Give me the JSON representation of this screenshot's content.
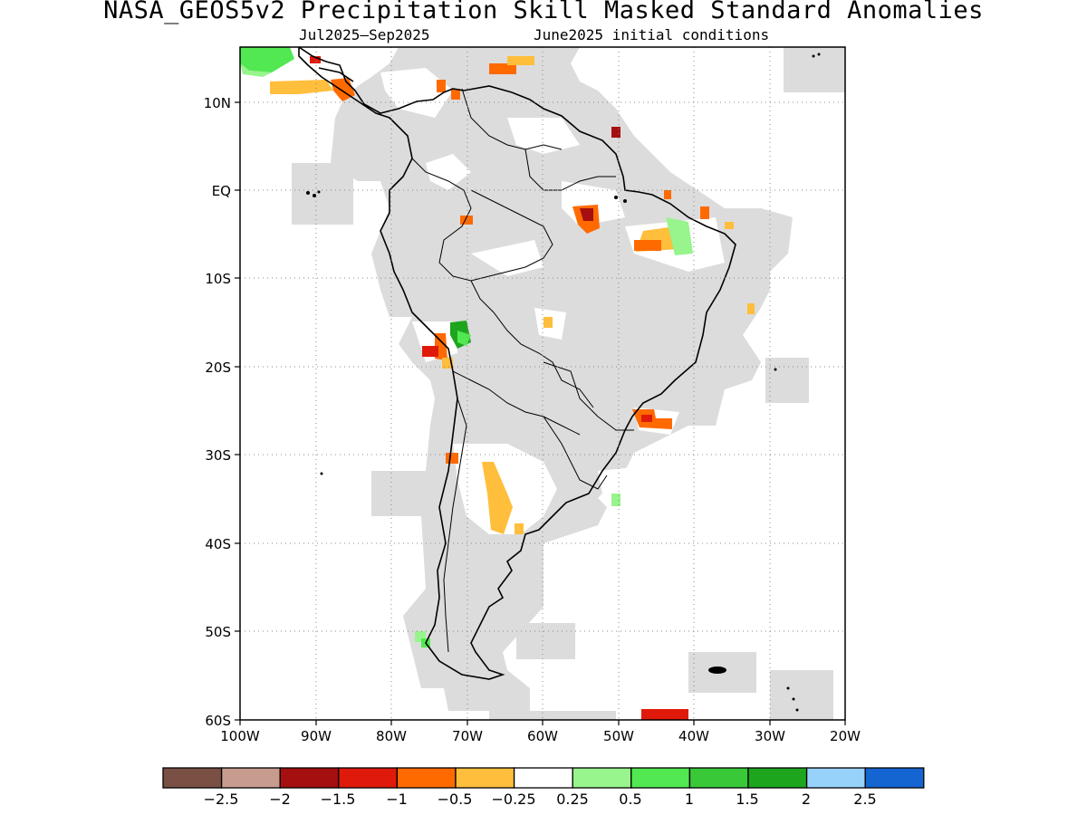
{
  "title": "NASA_GEOS5v2 Precipitation Skill Masked Standard Anomalies",
  "subtitle_left": "Jul2025–Sep2025",
  "subtitle_right": "June2025 initial conditions",
  "map": {
    "region": "South America",
    "lon_range": [
      -100,
      -20
    ],
    "lat_range": [
      -60,
      15
    ],
    "grid": "dotted",
    "masked_color": "#dcdcdc",
    "x_ticks": [
      "100W",
      "90W",
      "80W",
      "70W",
      "60W",
      "50W",
      "40W",
      "30W",
      "20W"
    ],
    "y_ticks": [
      "10N",
      "EQ",
      "10S",
      "20S",
      "30S",
      "40S",
      "50S",
      "60S"
    ]
  },
  "colorbar": {
    "colors": [
      "#7a5045",
      "#c89b8f",
      "#a50f0f",
      "#e01a0a",
      "#ff6a00",
      "#ffbe3c",
      "#ffffff",
      "#98f48c",
      "#52e852",
      "#38c838",
      "#1ea51e",
      "#96d2fa",
      "#1464d2"
    ],
    "labels": [
      "−2.5",
      "−2",
      "−1.5",
      "−1",
      "−0.5",
      "−0.25",
      "0.25",
      "0.5",
      "1",
      "1.5",
      "2",
      "2.5"
    ]
  }
}
